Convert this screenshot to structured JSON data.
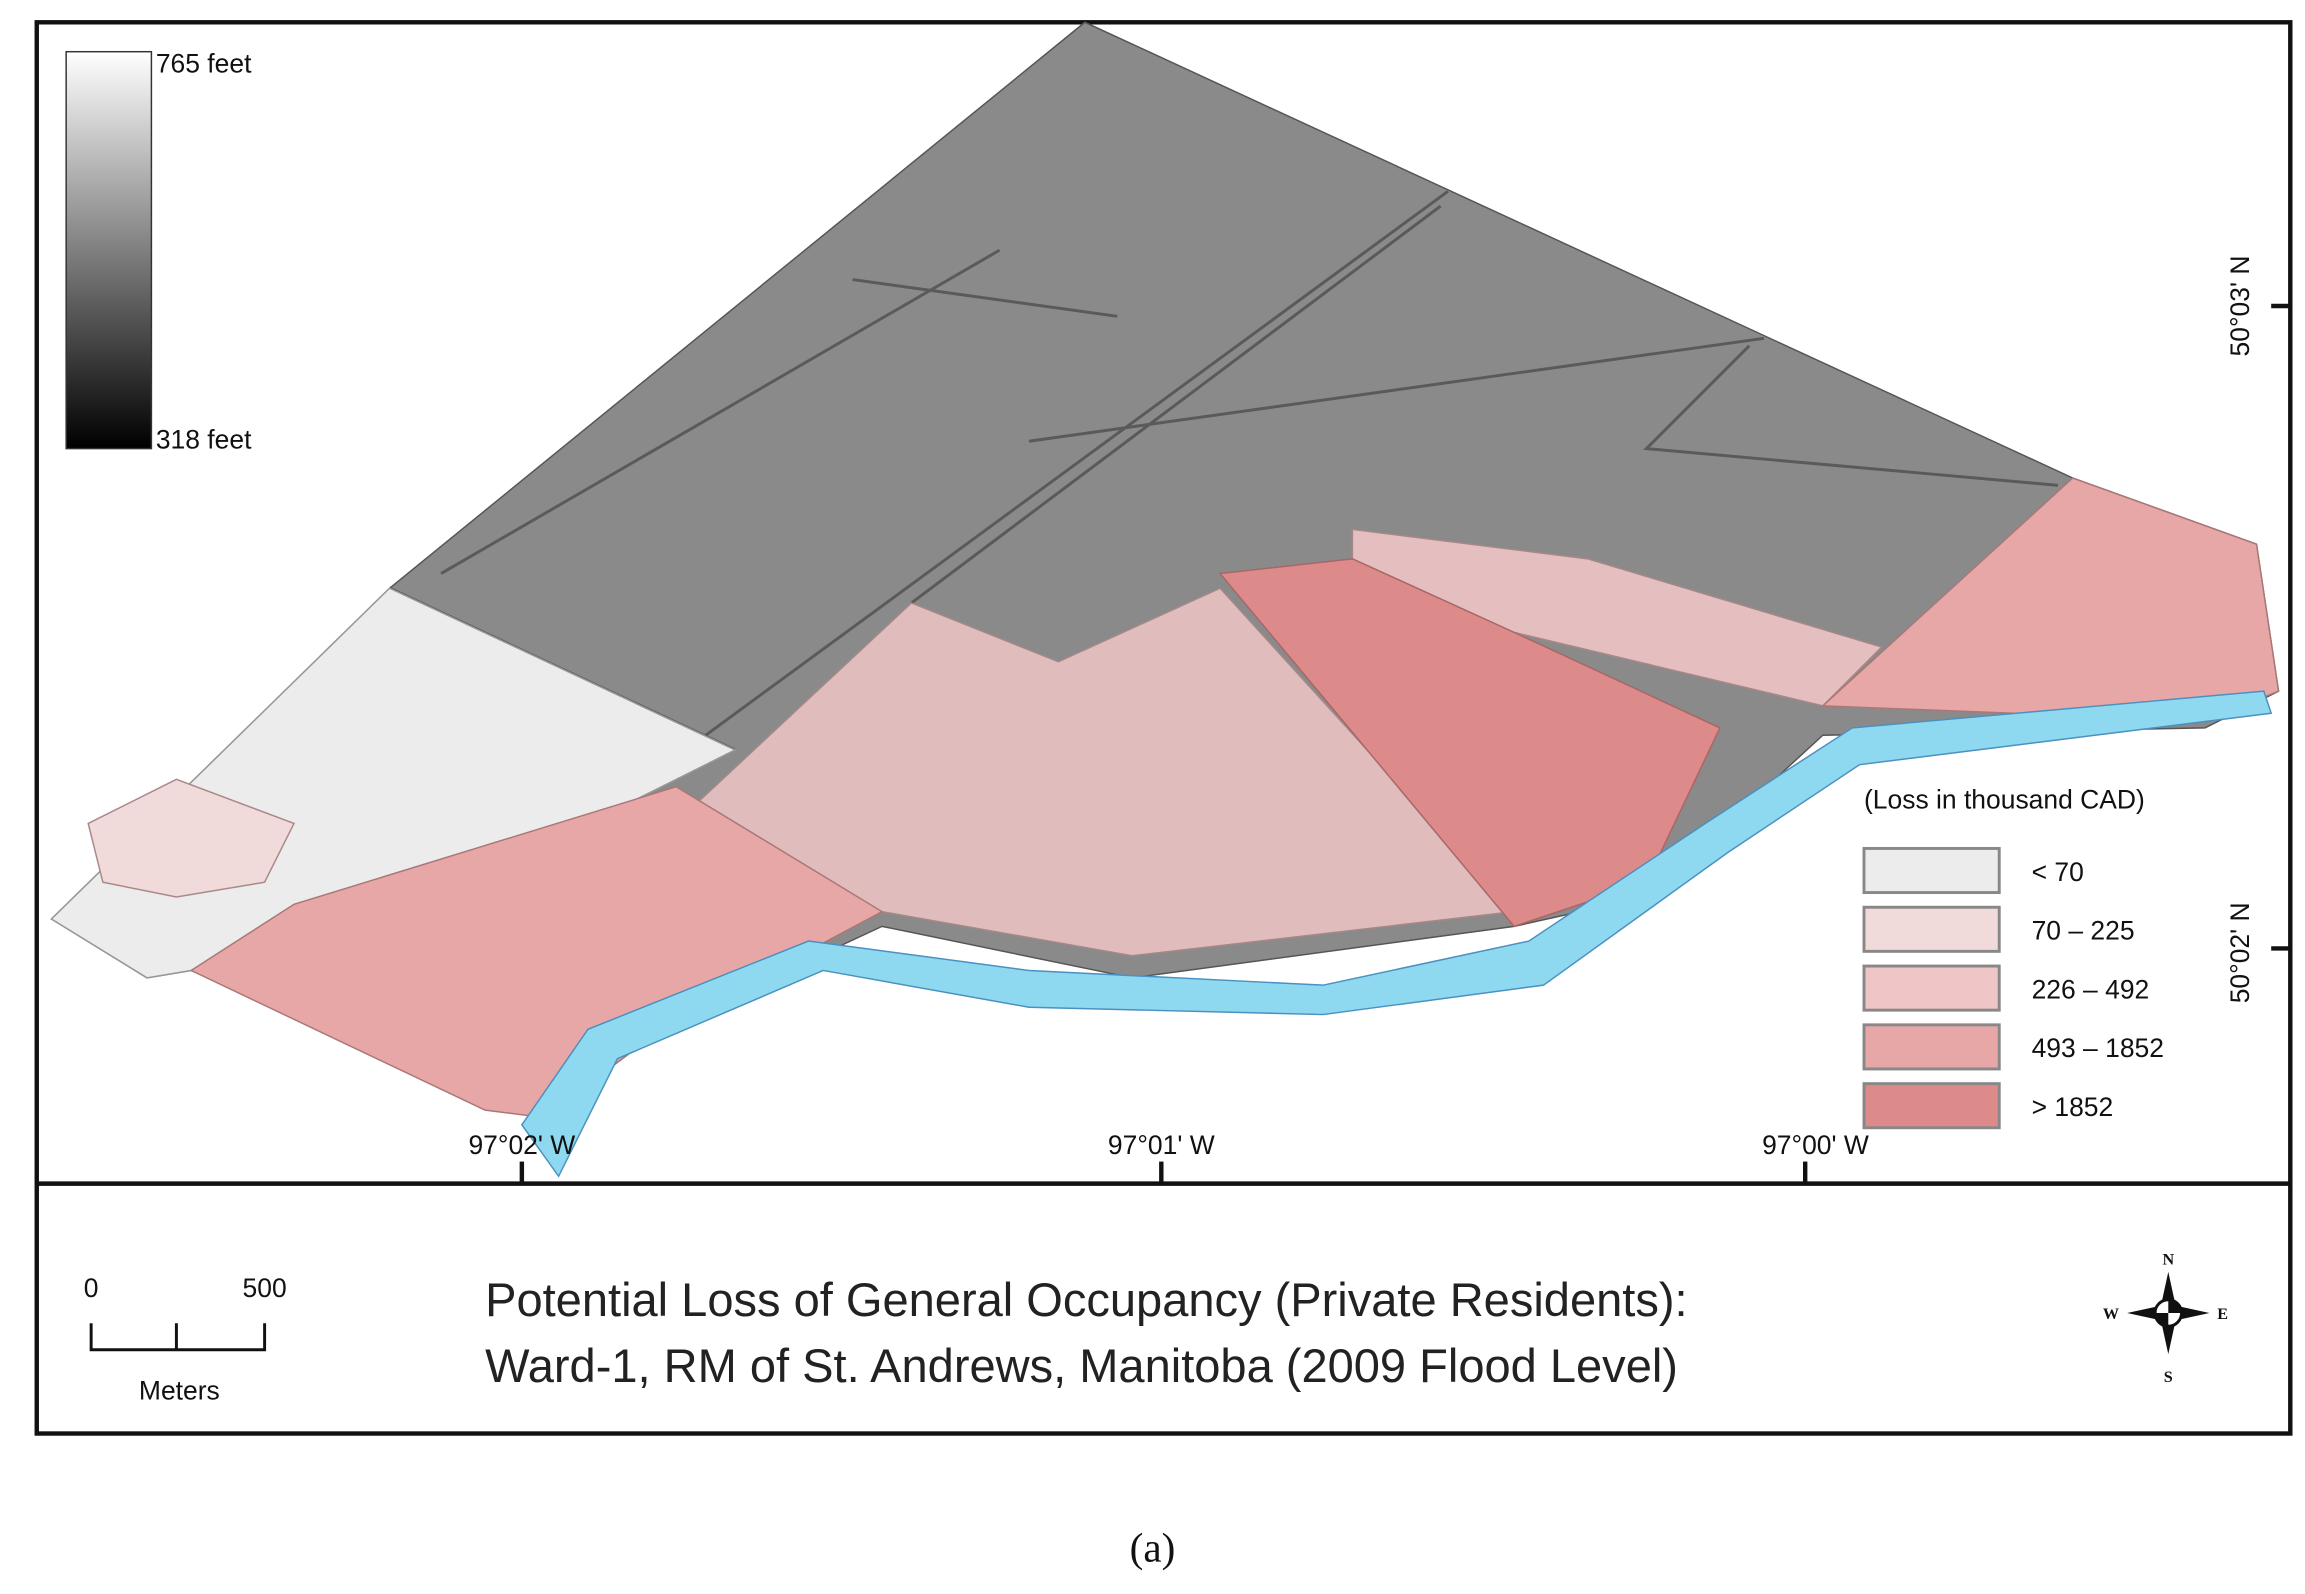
{
  "elevation_legend": {
    "max": "765 feet",
    "min": "318 feet"
  },
  "loss_legend": {
    "title": "(Loss in thousand CAD)",
    "classes": [
      {
        "label": "< 70",
        "color": "#ececec"
      },
      {
        "label": "70 – 225",
        "color": "#f1dada"
      },
      {
        "label": "226 – 492",
        "color": "#efc5c5"
      },
      {
        "label": "493 – 1852",
        "color": "#e7a7a7"
      },
      {
        "label": "> 1852",
        "color": "#dc8a8a"
      }
    ]
  },
  "longitude_labels": [
    "97°02' W",
    "97°01' W",
    "97°00' W"
  ],
  "latitude_labels": [
    "50°03' N",
    "50°02' N"
  ],
  "scale_bar": {
    "start": "0",
    "end": "500",
    "unit": "Meters"
  },
  "title": [
    "Potential Loss of General Occupancy (Private Residents):",
    "Ward-1, RM of St. Andrews, Manitoba (2009 Flood Level)"
  ],
  "compass": {
    "n": "N",
    "e": "E",
    "s": "S",
    "w": "W"
  },
  "caption": "(a)"
}
